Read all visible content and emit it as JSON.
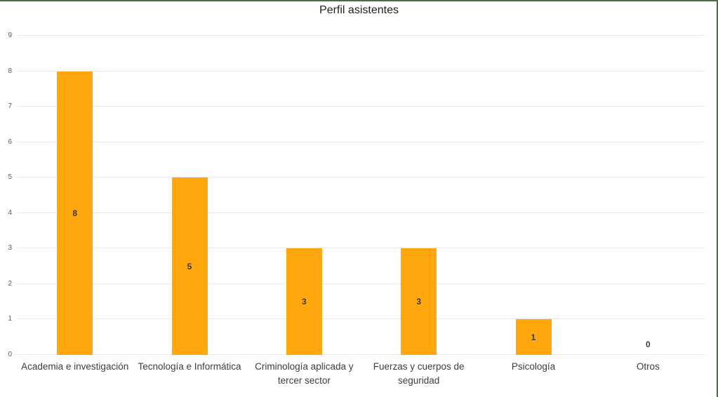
{
  "title": "Perfil asistentes",
  "colors": {
    "bar": "#FFA70D",
    "frame_border": "#45713C",
    "gridline": "#E7E7E7",
    "tick_text": "#595959",
    "data_label_text": "#3B3B3B",
    "title_text": "#212121",
    "category_text": "#3D3D3D",
    "background": "#FFFFFF"
  },
  "chart_data": {
    "type": "bar",
    "title": "Perfil asistentes",
    "categories": [
      "Academia e investigación",
      "Tecnología e Informática",
      "Criminología aplicada y tercer sector",
      "Fuerzas y cuerpos de seguridad",
      "Psicología",
      "Otros"
    ],
    "values": [
      8,
      5,
      3,
      3,
      1,
      0
    ],
    "data_labels": [
      "8",
      "5",
      "3",
      "3",
      "1",
      "0"
    ],
    "yticks": [
      0,
      1,
      2,
      3,
      4,
      5,
      6,
      7,
      8,
      9
    ],
    "ylim": [
      0,
      9
    ],
    "xlabel": "",
    "ylabel": "",
    "grid": true,
    "legend": false,
    "data_labels_position": "inside-center"
  }
}
